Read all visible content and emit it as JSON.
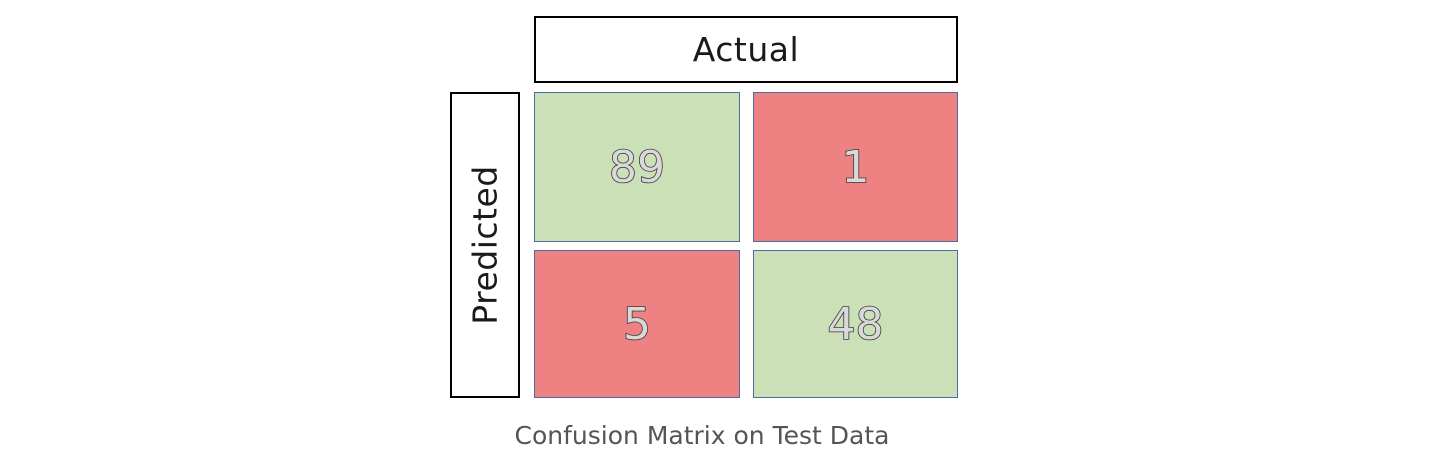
{
  "diagram": {
    "column_header": "Actual",
    "row_header": "Predicted",
    "colors": {
      "correct": "#cce0b8",
      "incorrect": "#ee8181",
      "cell_border": "#4f6c9e"
    },
    "cells": [
      {
        "value": "89",
        "status": "correct"
      },
      {
        "value": "1",
        "status": "incorrect"
      },
      {
        "value": "5",
        "status": "incorrect"
      },
      {
        "value": "48",
        "status": "correct"
      }
    ]
  },
  "caption": "Confusion Matrix on Test Data"
}
